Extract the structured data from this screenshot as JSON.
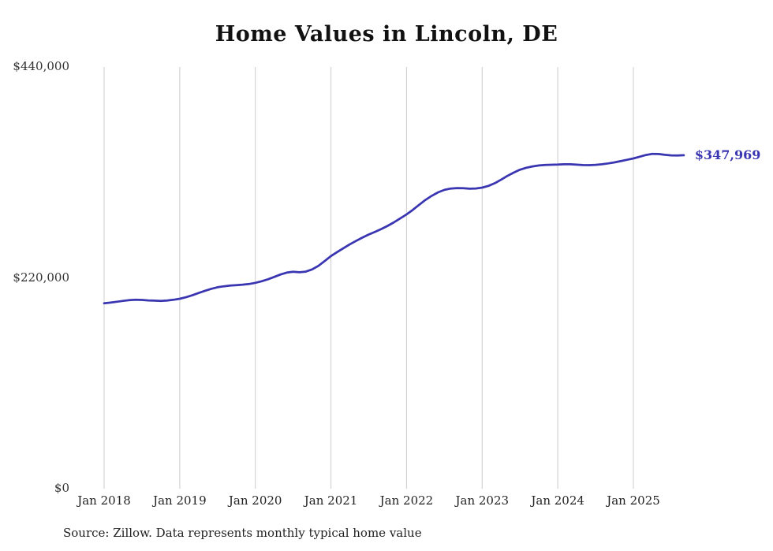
{
  "page": {
    "title": "Home Values in Lincoln, DE",
    "source_note": "Source: Zillow. Data represents monthly typical home value",
    "end_value_label": "$347,969"
  },
  "colors": {
    "line": "#3a35b1",
    "grid": "#cccccc",
    "y_tick_text": "#333333",
    "x_tick_text": "#222222",
    "title_text": "#111111"
  },
  "chart_data": {
    "type": "line",
    "title": "Home Values in Lincoln, DE",
    "xlabel": "",
    "ylabel": "",
    "ylim": [
      0,
      440000
    ],
    "grid": "vertical-only",
    "legend": "none",
    "annotation": "$347,969",
    "yticks": [
      {
        "value": 0,
        "label": "$0"
      },
      {
        "value": 220000,
        "label": "$220,000"
      },
      {
        "value": 440000,
        "label": "$440,000"
      }
    ],
    "xticks": [
      {
        "month_index": 0,
        "label": "Jan 2018"
      },
      {
        "month_index": 12,
        "label": "Jan 2019"
      },
      {
        "month_index": 24,
        "label": "Jan 2020"
      },
      {
        "month_index": 36,
        "label": "Jan 2021"
      },
      {
        "month_index": 48,
        "label": "Jan 2022"
      },
      {
        "month_index": 60,
        "label": "Jan 2023"
      },
      {
        "month_index": 72,
        "label": "Jan 2024"
      },
      {
        "month_index": 84,
        "label": "Jan 2025"
      }
    ],
    "series": [
      {
        "name": "Typical home value",
        "months": [
          "2018-01",
          "2018-02",
          "2018-03",
          "2018-04",
          "2018-05",
          "2018-06",
          "2018-07",
          "2018-08",
          "2018-09",
          "2018-10",
          "2018-11",
          "2018-12",
          "2019-01",
          "2019-02",
          "2019-03",
          "2019-04",
          "2019-05",
          "2019-06",
          "2019-07",
          "2019-08",
          "2019-09",
          "2019-10",
          "2019-11",
          "2019-12",
          "2020-01",
          "2020-02",
          "2020-03",
          "2020-04",
          "2020-05",
          "2020-06",
          "2020-07",
          "2020-08",
          "2020-09",
          "2020-10",
          "2020-11",
          "2020-12",
          "2021-01",
          "2021-02",
          "2021-03",
          "2021-04",
          "2021-05",
          "2021-06",
          "2021-07",
          "2021-08",
          "2021-09",
          "2021-10",
          "2021-11",
          "2021-12",
          "2022-01",
          "2022-02",
          "2022-03",
          "2022-04",
          "2022-05",
          "2022-06",
          "2022-07",
          "2022-08",
          "2022-09",
          "2022-10",
          "2022-11",
          "2022-12",
          "2023-01",
          "2023-02",
          "2023-03",
          "2023-04",
          "2023-05",
          "2023-06",
          "2023-07",
          "2023-08",
          "2023-09",
          "2023-10",
          "2023-11",
          "2023-12",
          "2024-01",
          "2024-02",
          "2024-03",
          "2024-04",
          "2024-05",
          "2024-06",
          "2024-07",
          "2024-08",
          "2024-09",
          "2024-10",
          "2024-11",
          "2024-12",
          "2025-01",
          "2025-02",
          "2025-03",
          "2025-04",
          "2025-05",
          "2025-06",
          "2025-07",
          "2025-08",
          "2025-09"
        ],
        "values": [
          193500,
          194200,
          195100,
          196000,
          196800,
          197200,
          197000,
          196500,
          196200,
          196000,
          196400,
          197100,
          198200,
          199800,
          201800,
          204200,
          206500,
          208600,
          210200,
          211200,
          211900,
          212400,
          212900,
          213600,
          214800,
          216500,
          218500,
          221000,
          223500,
          225500,
          226300,
          225800,
          226500,
          228800,
          232500,
          237500,
          242800,
          247000,
          251000,
          255000,
          258600,
          262000,
          265200,
          268000,
          271000,
          274300,
          278000,
          282000,
          286200,
          291000,
          296200,
          301300,
          305600,
          309200,
          311800,
          313200,
          313700,
          313500,
          313000,
          313300,
          314200,
          316000,
          318800,
          322500,
          326300,
          329800,
          332800,
          334900,
          336300,
          337300,
          337800,
          338000,
          338200,
          338500,
          338500,
          338100,
          337700,
          337600,
          337900,
          338500,
          339400,
          340500,
          341800,
          343200,
          344600,
          346400,
          348200,
          349400,
          349200,
          348400,
          347800,
          347600,
          347969
        ]
      }
    ]
  }
}
